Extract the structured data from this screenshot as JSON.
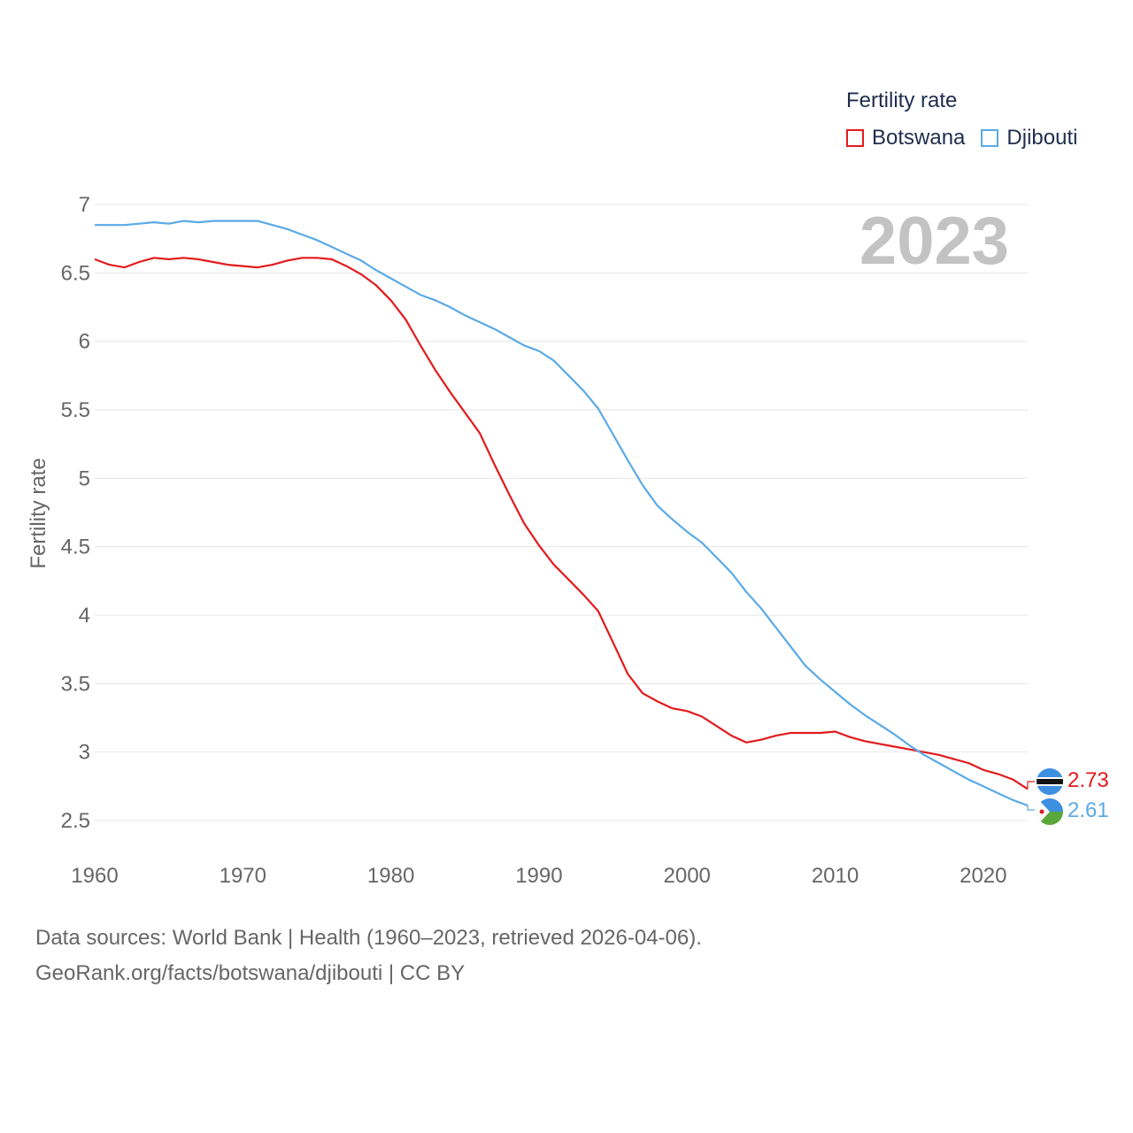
{
  "chart_data": {
    "type": "line",
    "legend_title": "Fertility rate",
    "year_label": "2023",
    "ylabel": "Fertility rate",
    "xlabel": "",
    "xlim": [
      1960,
      2023
    ],
    "ylim": [
      2.5,
      7
    ],
    "x_ticks": [
      1960,
      1970,
      1980,
      1990,
      2000,
      2010,
      2020
    ],
    "y_ticks": [
      2.5,
      3,
      3.5,
      4,
      4.5,
      5,
      5.5,
      6,
      6.5,
      7
    ],
    "y_tick_labels": [
      "2.5",
      "3",
      "3.5",
      "4",
      "4.5",
      "5",
      "5.5",
      "6",
      "6.5",
      "7"
    ],
    "x": [
      1960,
      1961,
      1962,
      1963,
      1964,
      1965,
      1966,
      1967,
      1968,
      1969,
      1970,
      1971,
      1972,
      1973,
      1974,
      1975,
      1976,
      1977,
      1978,
      1979,
      1980,
      1981,
      1982,
      1983,
      1984,
      1985,
      1986,
      1987,
      1988,
      1989,
      1990,
      1991,
      1992,
      1993,
      1994,
      1995,
      1996,
      1997,
      1998,
      1999,
      2000,
      2001,
      2002,
      2003,
      2004,
      2005,
      2006,
      2007,
      2008,
      2009,
      2010,
      2011,
      2012,
      2013,
      2014,
      2015,
      2016,
      2017,
      2018,
      2019,
      2020,
      2021,
      2022,
      2023
    ],
    "series": [
      {
        "name": "Botswana",
        "color": "#e31a1c",
        "end_label": "2.73",
        "values": [
          6.6,
          6.56,
          6.54,
          6.58,
          6.61,
          6.6,
          6.61,
          6.6,
          6.58,
          6.56,
          6.55,
          6.54,
          6.56,
          6.59,
          6.61,
          6.61,
          6.6,
          6.55,
          6.49,
          6.41,
          6.3,
          6.16,
          5.97,
          5.79,
          5.63,
          5.48,
          5.33,
          5.1,
          4.88,
          4.67,
          4.51,
          4.37,
          4.26,
          4.15,
          4.03,
          3.8,
          3.57,
          3.43,
          3.37,
          3.32,
          3.3,
          3.26,
          3.19,
          3.12,
          3.07,
          3.09,
          3.12,
          3.14,
          3.14,
          3.14,
          3.15,
          3.11,
          3.08,
          3.06,
          3.04,
          3.02,
          3.0,
          2.98,
          2.95,
          2.92,
          2.87,
          2.84,
          2.8,
          2.73
        ]
      },
      {
        "name": "Djibouti",
        "color": "#5aaae7",
        "end_label": "2.61",
        "values": [
          6.85,
          6.85,
          6.85,
          6.86,
          6.87,
          6.86,
          6.88,
          6.87,
          6.88,
          6.88,
          6.88,
          6.88,
          6.85,
          6.82,
          6.78,
          6.74,
          6.69,
          6.64,
          6.59,
          6.52,
          6.46,
          6.4,
          6.34,
          6.3,
          6.25,
          6.19,
          6.14,
          6.09,
          6.03,
          5.97,
          5.93,
          5.86,
          5.75,
          5.64,
          5.51,
          5.32,
          5.13,
          4.95,
          4.8,
          4.7,
          4.61,
          4.53,
          4.42,
          4.31,
          4.17,
          4.05,
          3.91,
          3.77,
          3.63,
          3.53,
          3.44,
          3.35,
          3.27,
          3.2,
          3.13,
          3.05,
          2.98,
          2.92,
          2.86,
          2.8,
          2.75,
          2.7,
          2.65,
          2.61
        ]
      }
    ]
  },
  "footer": {
    "line1": "Data sources: World Bank | Health (1960–2023, retrieved 2026-04-06).",
    "line2": "GeoRank.org/facts/botswana/djibouti | CC BY"
  },
  "icons": [
    "botswana-flag-icon",
    "djibouti-flag-icon"
  ]
}
